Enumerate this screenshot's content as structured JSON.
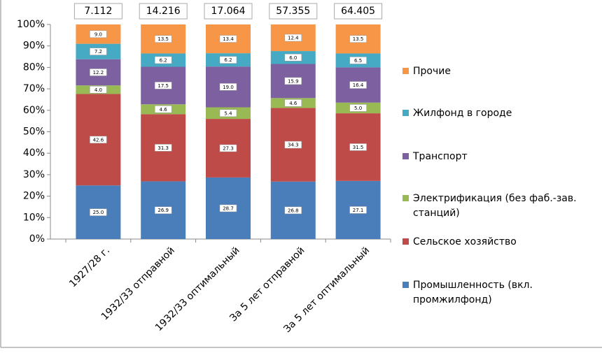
{
  "chart_data": {
    "type": "stacked_bar_100",
    "categories": [
      "1927/28 г.",
      "1932/33 отправной",
      "1932/33 оптимальный",
      "За 5 лет отправной",
      "За 5 лет оптимальный"
    ],
    "totals": [
      7.112,
      14.216,
      17.064,
      57.355,
      64.405
    ],
    "series": [
      {
        "name": "Промышленность (вкл. промжилфонд)",
        "color": "#4a7ebb",
        "values": [
          25.0,
          26.9,
          28.7,
          26.8,
          27.1
        ],
        "value_labels": [
          "25.0",
          "26.9",
          "28.7",
          "26.8",
          "27.1"
        ]
      },
      {
        "name": "Сельское хозяйство",
        "color": "#be4b48",
        "values": [
          42.6,
          31.3,
          27.3,
          34.3,
          31.5
        ],
        "value_labels": [
          "42.6",
          "31.3",
          "27.3",
          "34.3",
          "31.5"
        ]
      },
      {
        "name": "Электрификация (без фаб.-зав. станций)",
        "color": "#98b954",
        "values": [
          4.0,
          4.6,
          5.4,
          4.6,
          5.0
        ],
        "value_labels": [
          "4.0",
          "4.6",
          "5.4",
          "4.6",
          "5.0"
        ]
      },
      {
        "name": "Транспорт",
        "color": "#7d60a0",
        "values": [
          12.2,
          17.5,
          19.0,
          15.9,
          16.4
        ],
        "value_labels": [
          "12.2",
          "17.5",
          "19.0",
          "15.9",
          "16.4"
        ]
      },
      {
        "name": "Жилфонд в городе",
        "color": "#46aac5",
        "values": [
          7.2,
          6.2,
          6.2,
          6.0,
          6.5
        ],
        "value_labels": [
          "7.2",
          "6.2",
          "6.2",
          "6.0",
          "6.5"
        ]
      },
      {
        "name": "Прочие",
        "color": "#f79646",
        "values": [
          9.0,
          13.5,
          13.4,
          12.4,
          13.5
        ],
        "value_labels": [
          "9.0",
          "13.5",
          "13.4",
          "12.4",
          "13.5"
        ]
      }
    ],
    "ylim": [
      0,
      100
    ],
    "yticks": [
      {
        "value": 0,
        "label": "0%"
      },
      {
        "value": 10,
        "label": "10%"
      },
      {
        "value": 20,
        "label": "20%"
      },
      {
        "value": 30,
        "label": "30%"
      },
      {
        "value": 40,
        "label": "40%"
      },
      {
        "value": 50,
        "label": "50%"
      },
      {
        "value": 60,
        "label": "60%"
      },
      {
        "value": 70,
        "label": "70%"
      },
      {
        "value": 80,
        "label": "80%"
      },
      {
        "value": 90,
        "label": "90%"
      },
      {
        "value": 100,
        "label": "100%"
      }
    ],
    "legend": "right"
  }
}
